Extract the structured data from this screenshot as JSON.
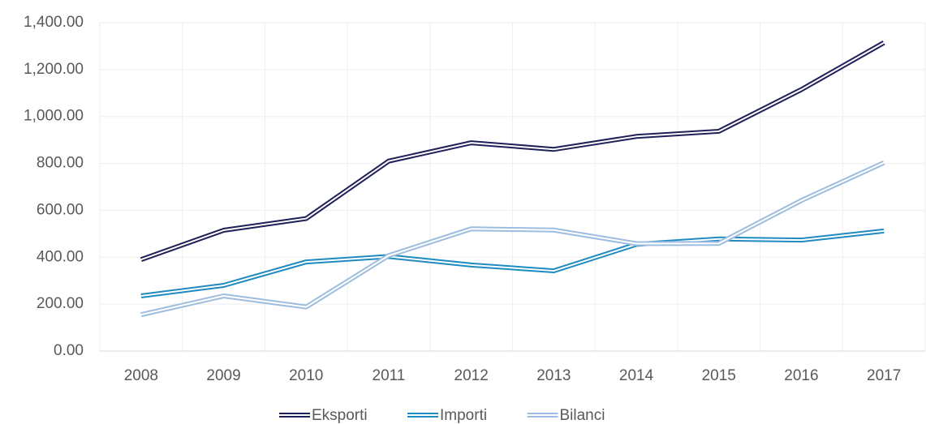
{
  "chart_data": {
    "type": "line",
    "categories": [
      "2008",
      "2009",
      "2010",
      "2011",
      "2012",
      "2013",
      "2014",
      "2015",
      "2016",
      "2017"
    ],
    "series": [
      {
        "name": "Eksporti",
        "color": "#1f1f5a",
        "values": [
          390,
          515,
          565,
          810,
          888,
          860,
          915,
          937,
          1115,
          1315
        ]
      },
      {
        "name": "Importi",
        "color": "#1f8ac0",
        "values": [
          235,
          280,
          380,
          403,
          367,
          342,
          455,
          478,
          473,
          512
        ]
      },
      {
        "name": "Bilanci",
        "color": "#9dbde0",
        "values": [
          155,
          235,
          188,
          407,
          521,
          516,
          458,
          459,
          642,
          803
        ]
      }
    ],
    "ylim": [
      0,
      1400
    ],
    "yticks": [
      {
        "value": 0,
        "label": "0.00"
      },
      {
        "value": 200,
        "label": "200.00"
      },
      {
        "value": 400,
        "label": "400.00"
      },
      {
        "value": 600,
        "label": "600.00"
      },
      {
        "value": 800,
        "label": "800.00"
      },
      {
        "value": 1000,
        "label": "1,000.00"
      },
      {
        "value": 1200,
        "label": "1,200.00"
      },
      {
        "value": 1400,
        "label": "1,400.00"
      }
    ],
    "grid": true,
    "legend": "bottom"
  }
}
